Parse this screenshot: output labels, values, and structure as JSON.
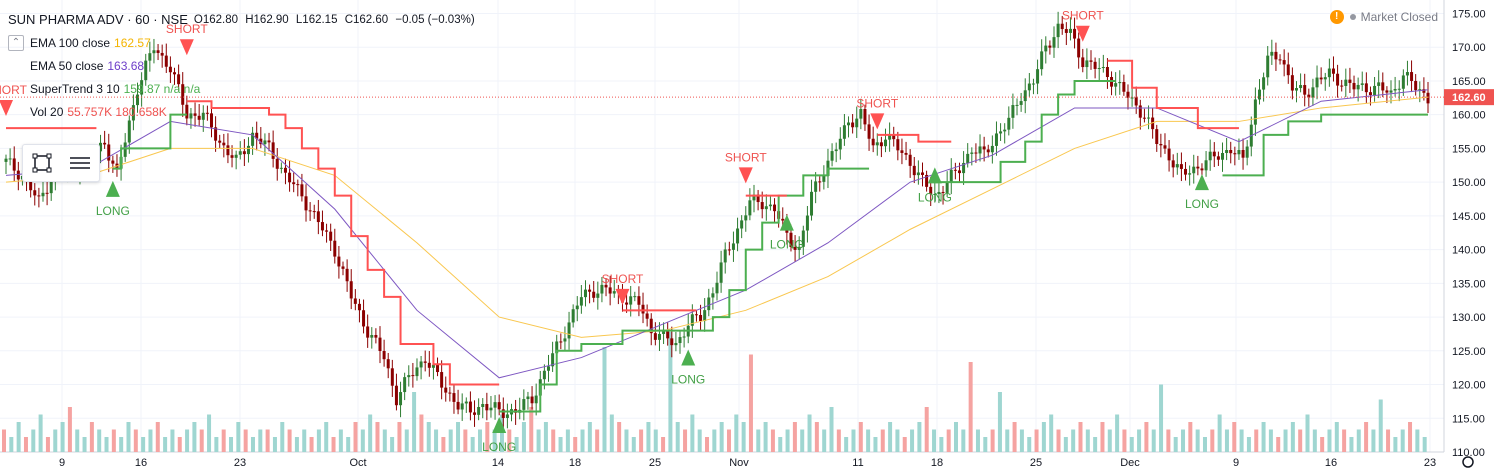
{
  "header": {
    "symbol": "SUN PHARMA ADV · 60 · NSE",
    "open": "O162.80",
    "high": "H162.90",
    "low": "L162.15",
    "close": "C162.60",
    "change": "−0.05 (−0.03%)",
    "market_status": "Market Closed"
  },
  "indicators": [
    {
      "label": "EMA 100 close",
      "value": "162.57",
      "color": "#f4b400"
    },
    {
      "label": "EMA 50 close",
      "value": "163.68",
      "color": "#6e3fc9"
    },
    {
      "label": "SuperTrend 3 10",
      "value": "159.87 n/a n/a",
      "color": "#4caf50"
    },
    {
      "label": "Vol 20",
      "value": "55.757K 180.658K",
      "color": "#ef5350"
    }
  ],
  "colors": {
    "up": "#26a69a",
    "down": "#ef5350",
    "candle_body_up": "#2e7d32",
    "candle_body_down": "#8b0000",
    "supertrend_up": "#4caf50",
    "supertrend_down": "#ff5252",
    "ema50": "#7e57c2",
    "ema100": "#f9c74f",
    "price_line": "#ef5350",
    "price_tag": "#ef5350"
  },
  "tools": [
    {
      "name": "rectangle-select-icon"
    },
    {
      "name": "menu-lines-icon"
    }
  ],
  "chart_data": {
    "type": "candlestick",
    "title": "SUN PHARMA ADV · 60 · NSE",
    "ylim": [
      110,
      177
    ],
    "y_ticks": [
      "175.00",
      "170.00",
      "165.00",
      "160.00",
      "155.00",
      "150.00",
      "145.00",
      "140.00",
      "135.00",
      "130.00",
      "125.00",
      "120.00",
      "115.00",
      "110.00"
    ],
    "x_ticks": [
      "9",
      "16",
      "23",
      "Oct",
      "14",
      "18",
      "25",
      "Nov",
      "11",
      "18",
      "25",
      "Dec",
      "9",
      "16",
      "23"
    ],
    "last_price": "162.60",
    "series": [
      {
        "name": "Price",
        "points": [
          [
            0,
            153
          ],
          [
            4,
            151
          ],
          [
            8,
            147
          ],
          [
            12,
            152
          ],
          [
            16,
            152
          ],
          [
            20,
            153
          ],
          [
            24,
            156
          ],
          [
            27,
            151
          ],
          [
            32,
            164
          ],
          [
            36,
            170
          ],
          [
            40,
            167
          ],
          [
            44,
            160
          ],
          [
            48,
            160
          ],
          [
            52,
            156
          ],
          [
            56,
            153
          ],
          [
            60,
            157
          ],
          [
            64,
            155
          ],
          [
            68,
            151
          ],
          [
            72,
            148
          ],
          [
            76,
            144
          ],
          [
            80,
            140
          ],
          [
            84,
            133
          ],
          [
            88,
            128
          ],
          [
            92,
            124
          ],
          [
            95,
            118
          ],
          [
            98,
            121
          ],
          [
            102,
            124
          ],
          [
            106,
            120
          ],
          [
            110,
            117
          ],
          [
            113,
            116
          ],
          [
            116,
            117
          ],
          [
            120,
            116
          ],
          [
            124,
            116
          ],
          [
            128,
            118
          ],
          [
            132,
            123
          ],
          [
            136,
            128
          ],
          [
            140,
            133
          ],
          [
            143,
            134
          ],
          [
            146,
            134
          ],
          [
            150,
            133
          ],
          [
            154,
            132
          ],
          [
            157,
            128
          ],
          [
            160,
            127
          ],
          [
            163,
            126
          ],
          [
            166,
            129
          ],
          [
            169,
            130
          ],
          [
            172,
            134
          ],
          [
            175,
            139
          ],
          [
            178,
            143
          ],
          [
            181,
            147
          ],
          [
            184,
            147
          ],
          [
            187,
            146
          ],
          [
            190,
            142
          ],
          [
            193,
            140
          ],
          [
            196,
            148
          ],
          [
            199,
            152
          ],
          [
            202,
            155
          ],
          [
            205,
            159
          ],
          [
            208,
            160
          ],
          [
            211,
            155
          ],
          [
            214,
            157
          ],
          [
            217,
            155
          ],
          [
            220,
            153
          ],
          [
            223,
            150
          ],
          [
            226,
            148
          ],
          [
            229,
            150
          ],
          [
            232,
            152
          ],
          [
            235,
            155
          ],
          [
            238,
            154
          ],
          [
            241,
            157
          ],
          [
            244,
            159
          ],
          [
            247,
            163
          ],
          [
            250,
            165
          ],
          [
            253,
            170
          ],
          [
            256,
            173
          ],
          [
            259,
            172
          ],
          [
            262,
            168
          ],
          [
            265,
            167
          ],
          [
            268,
            166
          ],
          [
            271,
            164
          ],
          [
            274,
            162
          ],
          [
            277,
            160
          ],
          [
            280,
            156
          ],
          [
            283,
            154
          ],
          [
            286,
            151
          ],
          [
            289,
            152
          ],
          [
            292,
            153
          ],
          [
            295,
            154
          ],
          [
            298,
            155
          ],
          [
            301,
            153
          ],
          [
            304,
            162
          ],
          [
            307,
            168
          ],
          [
            310,
            169
          ],
          [
            313,
            164
          ],
          [
            316,
            163
          ],
          [
            319,
            165
          ],
          [
            322,
            166
          ],
          [
            325,
            165
          ],
          [
            328,
            164
          ],
          [
            331,
            164
          ],
          [
            334,
            164
          ],
          [
            337,
            163
          ],
          [
            340,
            166
          ],
          [
            343,
            164
          ],
          [
            346,
            162.6
          ]
        ]
      },
      {
        "name": "EMA 50 close",
        "points": [
          [
            0,
            151
          ],
          [
            20,
            152
          ],
          [
            40,
            159
          ],
          [
            60,
            157
          ],
          [
            80,
            146
          ],
          [
            100,
            131
          ],
          [
            120,
            121
          ],
          [
            140,
            124
          ],
          [
            160,
            129
          ],
          [
            180,
            134
          ],
          [
            200,
            141
          ],
          [
            220,
            150
          ],
          [
            240,
            154
          ],
          [
            260,
            161
          ],
          [
            280,
            161
          ],
          [
            300,
            156
          ],
          [
            320,
            162
          ],
          [
            346,
            163.7
          ]
        ]
      },
      {
        "name": "EMA 100 close",
        "points": [
          [
            0,
            150
          ],
          [
            20,
            151
          ],
          [
            40,
            155
          ],
          [
            60,
            155
          ],
          [
            80,
            151
          ],
          [
            100,
            141
          ],
          [
            120,
            130
          ],
          [
            140,
            127
          ],
          [
            160,
            128
          ],
          [
            180,
            131
          ],
          [
            200,
            136
          ],
          [
            220,
            143
          ],
          [
            240,
            149
          ],
          [
            260,
            155
          ],
          [
            280,
            159
          ],
          [
            300,
            159
          ],
          [
            320,
            161
          ],
          [
            346,
            162.6
          ]
        ]
      },
      {
        "name": "SuperTrend 3 10",
        "segments": [
          {
            "trend": "down",
            "points": [
              [
                0,
                158
              ],
              [
                22,
                158
              ]
            ]
          },
          {
            "trend": "up",
            "points": [
              [
                26,
                152
              ],
              [
                28,
                155
              ],
              [
                40,
                160
              ],
              [
                44,
                160
              ]
            ]
          },
          {
            "trend": "down",
            "points": [
              [
                44,
                162
              ],
              [
                50,
                161
              ],
              [
                60,
                161
              ],
              [
                64,
                160
              ],
              [
                68,
                158
              ],
              [
                72,
                155
              ],
              [
                76,
                152
              ],
              [
                80,
                148
              ],
              [
                84,
                142
              ],
              [
                88,
                137
              ],
              [
                92,
                133
              ],
              [
                96,
                126
              ],
              [
                100,
                126
              ],
              [
                104,
                123
              ],
              [
                108,
                120
              ],
              [
                120,
                120
              ]
            ]
          },
          {
            "trend": "up",
            "points": [
              [
                120,
                116
              ],
              [
                126,
                116
              ],
              [
                130,
                120
              ],
              [
                134,
                125
              ],
              [
                140,
                126
              ],
              [
                150,
                128
              ],
              [
                160,
                128
              ],
              [
                168,
                128
              ],
              [
                172,
                130
              ],
              [
                176,
                134
              ],
              [
                180,
                140
              ],
              [
                184,
                144
              ],
              [
                188,
                148
              ],
              [
                194,
                151
              ],
              [
                200,
                152
              ],
              [
                210,
                152
              ]
            ]
          },
          {
            "trend": "down",
            "points": [
              [
                150,
                131
              ],
              [
                168,
                131
              ]
            ]
          },
          {
            "trend": "down",
            "points": [
              [
                180,
                148
              ],
              [
                190,
                148
              ]
            ]
          },
          {
            "trend": "down",
            "points": [
              [
                212,
                157
              ],
              [
                222,
                156
              ],
              [
                230,
                156
              ]
            ]
          },
          {
            "trend": "up",
            "points": [
              [
                226,
                150
              ],
              [
                236,
                150
              ],
              [
                242,
                153
              ],
              [
                248,
                156
              ],
              [
                252,
                160
              ],
              [
                256,
                163
              ],
              [
                260,
                165
              ],
              [
                270,
                165
              ]
            ]
          },
          {
            "trend": "down",
            "points": [
              [
                268,
                168
              ],
              [
                274,
                164
              ],
              [
                280,
                161
              ],
              [
                290,
                158
              ],
              [
                300,
                158
              ]
            ]
          },
          {
            "trend": "up",
            "points": [
              [
                296,
                151
              ],
              [
                302,
                151
              ],
              [
                306,
                157
              ],
              [
                312,
                159
              ],
              [
                320,
                160
              ],
              [
                346,
                160
              ]
            ]
          }
        ]
      }
    ],
    "signals": [
      {
        "type": "SHORT",
        "x": 0,
        "y": 161
      },
      {
        "type": "LONG",
        "x": 26,
        "y": 149
      },
      {
        "type": "SHORT",
        "x": 44,
        "y": 170
      },
      {
        "type": "LONG",
        "x": 120,
        "y": 114
      },
      {
        "type": "SHORT",
        "x": 150,
        "y": 133
      },
      {
        "type": "LONG",
        "x": 166,
        "y": 124
      },
      {
        "type": "SHORT",
        "x": 180,
        "y": 151
      },
      {
        "type": "LONG",
        "x": 190,
        "y": 144
      },
      {
        "type": "SHORT",
        "x": 212,
        "y": 159
      },
      {
        "type": "LONG",
        "x": 226,
        "y": 151
      },
      {
        "type": "SHORT",
        "x": 262,
        "y": 172
      },
      {
        "type": "LONG",
        "x": 291,
        "y": 150
      }
    ],
    "volume": [
      3,
      2,
      4,
      2,
      3,
      5,
      2,
      3,
      4,
      6,
      3,
      2,
      4,
      3,
      2,
      3,
      2,
      4,
      3,
      2,
      3,
      4,
      2,
      3,
      2,
      3,
      4,
      3,
      5,
      2,
      3,
      2,
      4,
      3,
      2,
      3,
      3,
      2,
      4,
      3,
      2,
      3,
      2,
      3,
      4,
      2,
      3,
      2,
      4,
      3,
      5,
      4,
      3,
      2,
      4,
      3,
      8,
      5,
      4,
      3,
      2,
      3,
      4,
      3,
      2,
      3,
      4,
      3,
      5,
      3,
      2,
      4,
      6,
      3,
      4,
      3,
      2,
      3,
      2,
      3,
      4,
      3,
      14,
      5,
      4,
      3,
      2,
      3,
      4,
      3,
      2,
      16,
      4,
      3,
      5,
      3,
      2,
      3,
      4,
      3,
      5,
      4,
      13,
      3,
      4,
      3,
      2,
      3,
      4,
      3,
      5,
      4,
      3,
      6,
      3,
      2,
      3,
      4,
      3,
      2,
      3,
      4,
      3,
      2,
      3,
      4,
      6,
      3,
      2,
      3,
      4,
      3,
      12,
      3,
      2,
      3,
      8,
      3,
      4,
      3,
      2,
      3,
      4,
      5,
      3,
      2,
      3,
      4,
      3,
      2,
      4,
      3,
      5,
      3,
      2,
      3,
      4,
      3,
      9,
      3,
      2,
      3,
      4,
      3,
      2,
      3,
      5,
      3,
      4,
      3,
      2,
      3,
      4,
      3,
      2,
      3,
      4,
      3,
      5,
      3,
      2,
      3,
      4,
      3,
      2,
      3,
      4,
      3,
      7,
      3,
      2,
      3,
      4,
      3,
      2
    ]
  }
}
